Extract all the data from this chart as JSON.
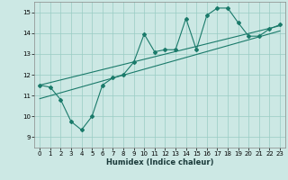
{
  "xlabel": "Humidex (Indice chaleur)",
  "bg_color": "#cce8e4",
  "grid_color": "#99ccc4",
  "line_color": "#1a7a6a",
  "xlim": [
    -0.5,
    23.5
  ],
  "ylim": [
    8.5,
    15.5
  ],
  "xticks": [
    0,
    1,
    2,
    3,
    4,
    5,
    6,
    7,
    8,
    9,
    10,
    11,
    12,
    13,
    14,
    15,
    16,
    17,
    18,
    19,
    20,
    21,
    22,
    23
  ],
  "yticks": [
    9,
    10,
    11,
    12,
    13,
    14,
    15
  ],
  "jagged_x": [
    0,
    1,
    2,
    3,
    4,
    5,
    6,
    7,
    8,
    9,
    10,
    11,
    12,
    13,
    14,
    15,
    16,
    17,
    18,
    19,
    20,
    21,
    22,
    23
  ],
  "jagged_y": [
    11.5,
    11.4,
    10.8,
    9.75,
    9.35,
    10.0,
    11.5,
    11.85,
    12.0,
    12.6,
    13.95,
    13.1,
    13.2,
    13.2,
    14.7,
    13.2,
    14.85,
    15.2,
    15.2,
    14.5,
    13.85,
    13.85,
    14.2,
    14.4
  ],
  "line1_x": [
    0,
    23
  ],
  "line1_y": [
    11.5,
    14.35
  ],
  "line2_x": [
    0,
    23
  ],
  "line2_y": [
    10.85,
    14.1
  ]
}
